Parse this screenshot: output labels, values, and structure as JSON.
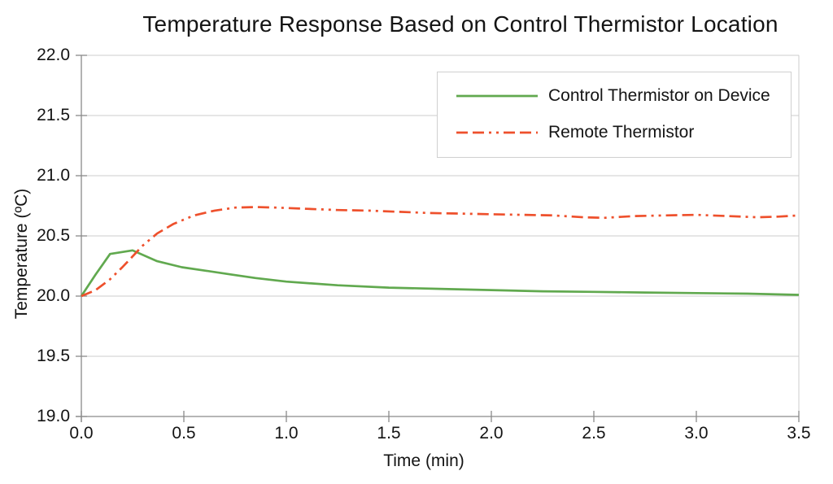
{
  "page": {
    "background": "#ffffff",
    "grid_color": "#cccccc",
    "axis_color": "#8a8a8a",
    "legend_border_color": "#cfcfcf"
  },
  "chart_data": {
    "type": "line",
    "title": "Temperature Response Based on Control Thermistor Location",
    "xlabel": "Time (min)",
    "ylabel": "Temperature (ºC)",
    "xlim": [
      0,
      3.5
    ],
    "ylim": [
      19.0,
      22.0
    ],
    "grid": "horizontal",
    "legend_position": "top-right-inside",
    "x_ticks": [
      0,
      0.5,
      1.0,
      1.5,
      2.0,
      2.5,
      3.0,
      3.5
    ],
    "x_tick_labels": [
      "0.0",
      "0.5",
      "1.0",
      "1.5",
      "2.0",
      "2.5",
      "3.0",
      "3.5"
    ],
    "y_ticks": [
      19.0,
      19.5,
      20.0,
      20.5,
      21.0,
      21.5,
      22.0
    ],
    "y_tick_labels": [
      "19.0",
      "19.5",
      "20.0",
      "20.5",
      "21.0",
      "21.5",
      "22.0"
    ],
    "series": [
      {
        "name": "Control Thermistor on Device",
        "color": "#61a94f",
        "style": "solid",
        "x": [
          0,
          0.07,
          0.14,
          0.25,
          0.37,
          0.49,
          0.61,
          0.73,
          0.85,
          1.0,
          1.25,
          1.5,
          1.75,
          2.0,
          2.25,
          2.5,
          2.75,
          3.0,
          3.25,
          3.5
        ],
        "y": [
          20.0,
          20.18,
          20.35,
          20.38,
          20.29,
          20.24,
          20.21,
          20.18,
          20.15,
          20.12,
          20.09,
          20.07,
          20.06,
          20.05,
          20.04,
          20.035,
          20.03,
          20.025,
          20.02,
          20.01
        ]
      },
      {
        "name": "Remote Thermistor",
        "color": "#ee502c",
        "style": "dash-dot-dot",
        "x": [
          0,
          0.07,
          0.14,
          0.2,
          0.25,
          0.3,
          0.37,
          0.45,
          0.55,
          0.65,
          0.75,
          0.85,
          0.95,
          1.1,
          1.25,
          1.4,
          1.55,
          1.7,
          1.85,
          2.0,
          2.15,
          2.3,
          2.45,
          2.55,
          2.7,
          2.85,
          3.0,
          3.15,
          3.3,
          3.4,
          3.5
        ],
        "y": [
          20.0,
          20.05,
          20.14,
          20.24,
          20.33,
          20.42,
          20.52,
          20.6,
          20.67,
          20.71,
          20.735,
          20.74,
          20.735,
          20.725,
          20.715,
          20.71,
          20.7,
          20.69,
          20.685,
          20.68,
          20.675,
          20.67,
          20.655,
          20.65,
          20.665,
          20.67,
          20.675,
          20.665,
          20.655,
          20.66,
          20.67
        ]
      }
    ]
  }
}
